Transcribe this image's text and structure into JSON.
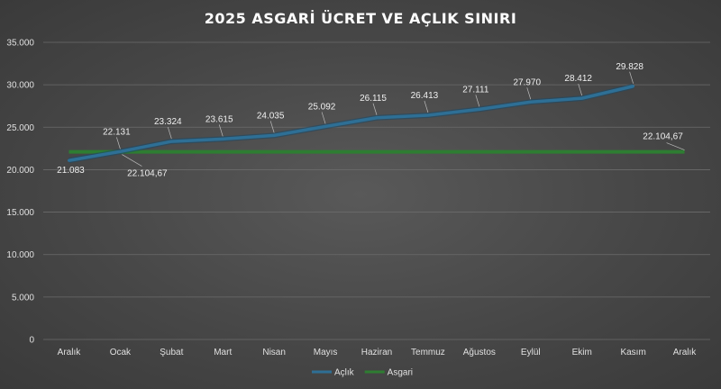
{
  "chart_data": {
    "type": "line",
    "title": "2025 ASGARİ ÜCRET VE AÇLIK SINIRI",
    "categories": [
      "Aralık",
      "Ocak",
      "Şubat",
      "Mart",
      "Nisan",
      "Mayıs",
      "Haziran",
      "Temmuz",
      "Ağustos",
      "Eylül",
      "Ekim",
      "Kasım",
      "Aralık"
    ],
    "y_ticks": [
      "0",
      "5.000",
      "10.000",
      "15.000",
      "20.000",
      "25.000",
      "30.000",
      "35.000"
    ],
    "ylim": [
      0,
      35000
    ],
    "grid": true,
    "legend_position": "bottom",
    "series": [
      {
        "name": "Açlık",
        "color": "#2e6f95",
        "values": [
          21083,
          22131,
          23324,
          23615,
          24035,
          25092,
          26115,
          26413,
          27111,
          27970,
          28412,
          29828,
          null
        ],
        "labels": [
          "21.083",
          "22.131",
          "23.324",
          "23.615",
          "24.035",
          "25.092",
          "26.115",
          "26.413",
          "27.111",
          "27.970",
          "28.412",
          "29.828",
          ""
        ]
      },
      {
        "name": "Asgari",
        "color": "#2e7d32",
        "values": [
          22104.67,
          22104.67,
          22104.67,
          22104.67,
          22104.67,
          22104.67,
          22104.67,
          22104.67,
          22104.67,
          22104.67,
          22104.67,
          22104.67,
          22104.67
        ],
        "labels": [
          "",
          "22.104,67",
          "",
          "",
          "",
          "",
          "",
          "",
          "",
          "",
          "",
          "",
          "22.104,67"
        ]
      }
    ]
  }
}
